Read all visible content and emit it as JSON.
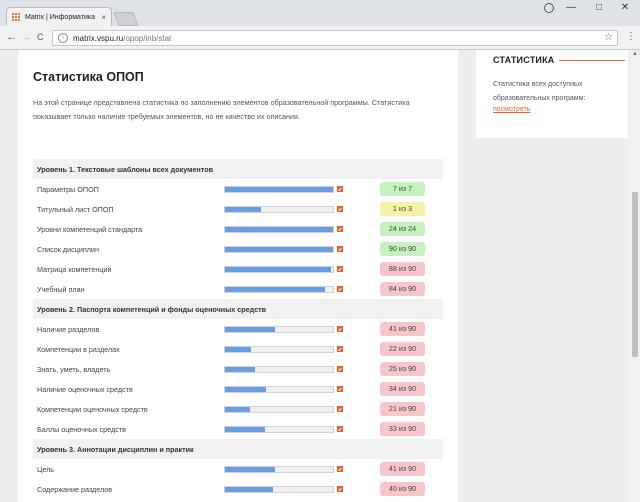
{
  "browser": {
    "tab_title": "Matrix | Информатика",
    "url_host": "matrix.vspu.ru",
    "url_path": "/opop/inb/stat",
    "tab_close_glyph": "×",
    "back_glyph": "←",
    "forward_glyph": "→",
    "reload_glyph": "C",
    "info_glyph": "i",
    "star_glyph": "☆",
    "menu_glyph": "⋮",
    "minimize_glyph": "—",
    "maximize_glyph": "□",
    "close_glyph": "✕"
  },
  "page": {
    "title": "Статистика ОПОП",
    "intro": "На этой странице представлена статистика по заполнению элементов образовательной программы. Статистика показывает только наличие требуемых элементов, но не качество их описания."
  },
  "sidebar": {
    "title": "СТАТИСТИКА",
    "text": "Статистика всех доступных образовательных программ:",
    "link": "посмотреть"
  },
  "colors": {
    "complete": "#c6f2bf",
    "partial": "#f6f3a6",
    "incomplete": "#f7c6ca",
    "bar": "#6b9de5",
    "accent": "#e8602c"
  },
  "stats": [
    {
      "type": "section",
      "title": "Уровень 1. Текстовые шаблоны всех документов"
    },
    {
      "type": "item",
      "label": "Параметры ОПОП",
      "fill": 1.0,
      "badge": "7 из 7",
      "status": "complete"
    },
    {
      "type": "item",
      "label": "Титульный лист ОПОП",
      "fill": 0.33,
      "badge": "1 из 3",
      "status": "partial"
    },
    {
      "type": "item",
      "label": "Уровни компетенций стандарта",
      "fill": 1.0,
      "badge": "24 из 24",
      "status": "complete"
    },
    {
      "type": "item",
      "label": "Список дисциплин",
      "fill": 1.0,
      "badge": "90 из 90",
      "status": "complete"
    },
    {
      "type": "item",
      "label": "Матрица компетенций",
      "fill": 0.98,
      "badge": "88 из 90",
      "status": "incomplete"
    },
    {
      "type": "item",
      "label": "Учебный план",
      "fill": 0.93,
      "badge": "84 из 90",
      "status": "incomplete"
    },
    {
      "type": "section",
      "title": "Уровень 2. Паспорта компетенций и фонды оценочных средств"
    },
    {
      "type": "item",
      "label": "Наличие разделов",
      "fill": 0.46,
      "badge": "41 из 90",
      "status": "incomplete"
    },
    {
      "type": "item",
      "label": "Компетенции в разделах",
      "fill": 0.24,
      "badge": "22 из 90",
      "status": "incomplete"
    },
    {
      "type": "item",
      "label": "Знать, уметь, владеть",
      "fill": 0.28,
      "badge": "25 из 90",
      "status": "incomplete"
    },
    {
      "type": "item",
      "label": "Наличие оценочных средств",
      "fill": 0.38,
      "badge": "34 из 90",
      "status": "incomplete"
    },
    {
      "type": "item",
      "label": "Компетенции оценочных средств",
      "fill": 0.23,
      "badge": "21 из 90",
      "status": "incomplete"
    },
    {
      "type": "item",
      "label": "Баллы оценочных средств",
      "fill": 0.37,
      "badge": "33 из 90",
      "status": "incomplete"
    },
    {
      "type": "section",
      "title": "Уровень 3. Аннотации дисциплин и практик"
    },
    {
      "type": "item",
      "label": "Цель",
      "fill": 0.46,
      "badge": "41 из 90",
      "status": "incomplete"
    },
    {
      "type": "item",
      "label": "Содержание разделов",
      "fill": 0.44,
      "badge": "40 из 90",
      "status": "incomplete"
    }
  ]
}
